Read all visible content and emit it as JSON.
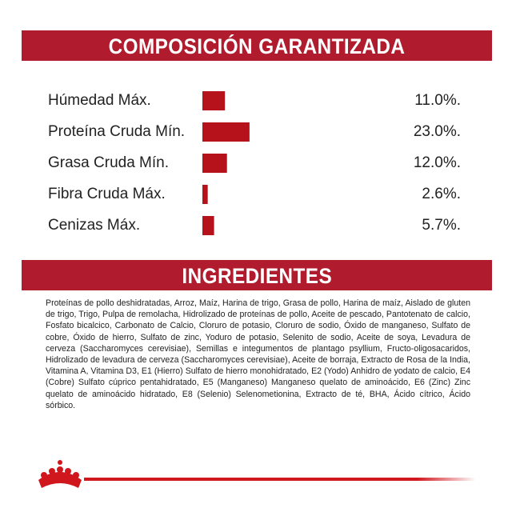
{
  "chart_data": {
    "type": "bar",
    "title": "COMPOSICIÓN GARANTIZADA",
    "categories": [
      "Húmedad Máx.",
      "Proteína Cruda Mín.",
      "Grasa Cruda Mín.",
      "Fibra Cruda Máx.",
      "Cenizas Máx."
    ],
    "values": [
      11.0,
      23.0,
      12.0,
      2.6,
      5.7
    ],
    "value_labels": [
      "11.0%.",
      "23.0%.",
      "12.0%.",
      "2.6%.",
      "5.7%."
    ],
    "color": "#b5121b"
  },
  "ingredients": {
    "title": "INGREDIENTES",
    "text": "Proteínas de pollo deshidratadas, Arroz, Maíz, Harina de trigo, Grasa de pollo, Harina de maíz, Aislado de gluten de trigo, Trigo, Pulpa de remolacha, Hidrolizado de proteínas de pollo, Aceite de pescado, Pantotenato de calcio, Fosfato bicalcico, Carbonato de Calcio, Cloruro de potasio, Cloruro de sodio, Óxido de manganeso, Sulfato de cobre, Óxido de hierro, Sulfato de zinc, Yoduro de potasio, Selenito de sodio, Aceite de soya, Levadura de cerveza (Saccharomyces cerevisiae), Semillas e integumentos de plantago psyllium, Fructo-oligosacaridos, Hidrolizado de levadura de cerveza (Saccharomyces cerevisiae), Aceite de borraja, Extracto de Rosa de la India, Vitamina A, Vitamina D3, E1 (Hierro) Sulfato de hierro monohidratado, E2 (Yodo) Anhidro de yodato de calcio, E4 (Cobre) Sulfato cúprico pentahidratado, E5 (Manganeso) Manganeso quelato de aminoácido, E6 (Zinc) Zinc quelato de aminoácido hidratado, E8 (Selenio) Selenometionina, Extracto de té, BHA, Ácido cítrico, Ácido sórbico."
  }
}
